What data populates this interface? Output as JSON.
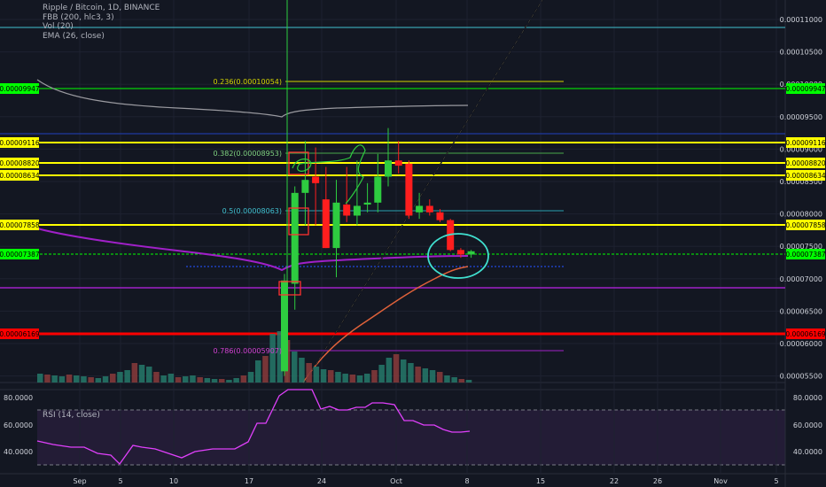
{
  "header": {
    "symbol": "Ripple / Bitcoin, 1D, BINANCE",
    "indicators": [
      "FBB (200, hlc3, 3)",
      "Vol (20)",
      "EMA (26, close)"
    ],
    "rsi_label": "RSI (14, close)"
  },
  "colors": {
    "background": "#131722",
    "up": "#2ecc40",
    "down": "#ff1e1e",
    "fib": "#d4d400",
    "resistance": "#ffff00",
    "support": "#ff0000",
    "current": "#00ff00",
    "ema": "#e0623a",
    "basis": "#a020c8",
    "rsi": "#e040fb",
    "annotation": "#40e0d0"
  },
  "chart_data": {
    "type": "candlestick",
    "y_axis_ticks": [
      "0.00011000",
      "0.00010500",
      "0.00010000",
      "0.00009500",
      "0.00009000",
      "0.00008500",
      "0.00008000",
      "0.00007500",
      "0.00007000",
      "0.00006500",
      "0.00006000",
      "0.00005500"
    ],
    "x_axis_ticks": [
      "Sep",
      "5",
      "10",
      "17",
      "24",
      "Oct",
      "8",
      "15",
      "22",
      "26",
      "Nov",
      "5"
    ],
    "price_labels": [
      {
        "text": "0.00009947",
        "kind": "current"
      },
      {
        "text": "0.00009116",
        "kind": "resistance"
      },
      {
        "text": "0.00008820",
        "kind": "resistance"
      },
      {
        "text": "0.00008634",
        "kind": "resistance"
      },
      {
        "text": "0.00007858",
        "kind": "resistance"
      },
      {
        "text": "0.00007387",
        "kind": "current"
      },
      {
        "text": "0.00006169",
        "kind": "support"
      }
    ],
    "fib_labels": [
      {
        "text": "0.236(0.00010054)",
        "color": "#d4d400"
      },
      {
        "text": "0.382(0.00008953)",
        "color": "#7fd17f"
      },
      {
        "text": "0.5(0.00008063)",
        "color": "#40c0d0"
      },
      {
        "text": "0.786(0.00005907)",
        "color": "#d040d0"
      }
    ],
    "candles": [
      {
        "o": 5.55e-05,
        "h": 7.05e-05,
        "l": 5.48e-05,
        "c": 6.95e-05
      },
      {
        "o": 6.9e-05,
        "h": 8.4e-05,
        "l": 6.5e-05,
        "c": 8.3e-05
      },
      {
        "o": 8.3e-05,
        "h": 9.1e-05,
        "l": 7.8e-05,
        "c": 8.5e-05
      },
      {
        "o": 8.55e-05,
        "h": 9e-05,
        "l": 7.8e-05,
        "c": 8.45e-05
      },
      {
        "o": 8.2e-05,
        "h": 8.7e-05,
        "l": 7.45e-05,
        "c": 7.45e-05
      },
      {
        "o": 7.45e-05,
        "h": 8.5e-05,
        "l": 7e-05,
        "c": 8.15e-05
      },
      {
        "o": 8.12e-05,
        "h": 8.7e-05,
        "l": 7.85e-05,
        "c": 7.95e-05
      },
      {
        "o": 7.95e-05,
        "h": 8.8e-05,
        "l": 7.8e-05,
        "c": 8.1e-05
      },
      {
        "o": 8.12e-05,
        "h": 8.45e-05,
        "l": 8e-05,
        "c": 8.15e-05
      },
      {
        "o": 8.15e-05,
        "h": 8.9e-05,
        "l": 8e-05,
        "c": 8.55e-05
      },
      {
        "o": 8.55e-05,
        "h": 9.3e-05,
        "l": 8.4e-05,
        "c": 8.8e-05
      },
      {
        "o": 8.8e-05,
        "h": 9.1e-05,
        "l": 8.6e-05,
        "c": 8.72e-05
      },
      {
        "o": 8.75e-05,
        "h": 8.8e-05,
        "l": 7.9e-05,
        "c": 7.95e-05
      },
      {
        "o": 8e-05,
        "h": 8.3e-05,
        "l": 7.9e-05,
        "c": 8.1e-05
      },
      {
        "o": 8.1e-05,
        "h": 8.2e-05,
        "l": 7.95e-05,
        "c": 8e-05
      },
      {
        "o": 8e-05,
        "h": 8.05e-05,
        "l": 7.85e-05,
        "c": 7.88e-05
      },
      {
        "o": 7.88e-05,
        "h": 7.9e-05,
        "l": 7.4e-05,
        "c": 7.42e-05
      },
      {
        "o": 7.42e-05,
        "h": 7.45e-05,
        "l": 7.3e-05,
        "c": 7.35e-05
      },
      {
        "o": 7.35e-05,
        "h": 7.42e-05,
        "l": 7.3e-05,
        "c": 7.4e-05
      }
    ],
    "rsi_ticks": [
      "80.0000",
      "60.0000",
      "40.0000"
    ]
  }
}
